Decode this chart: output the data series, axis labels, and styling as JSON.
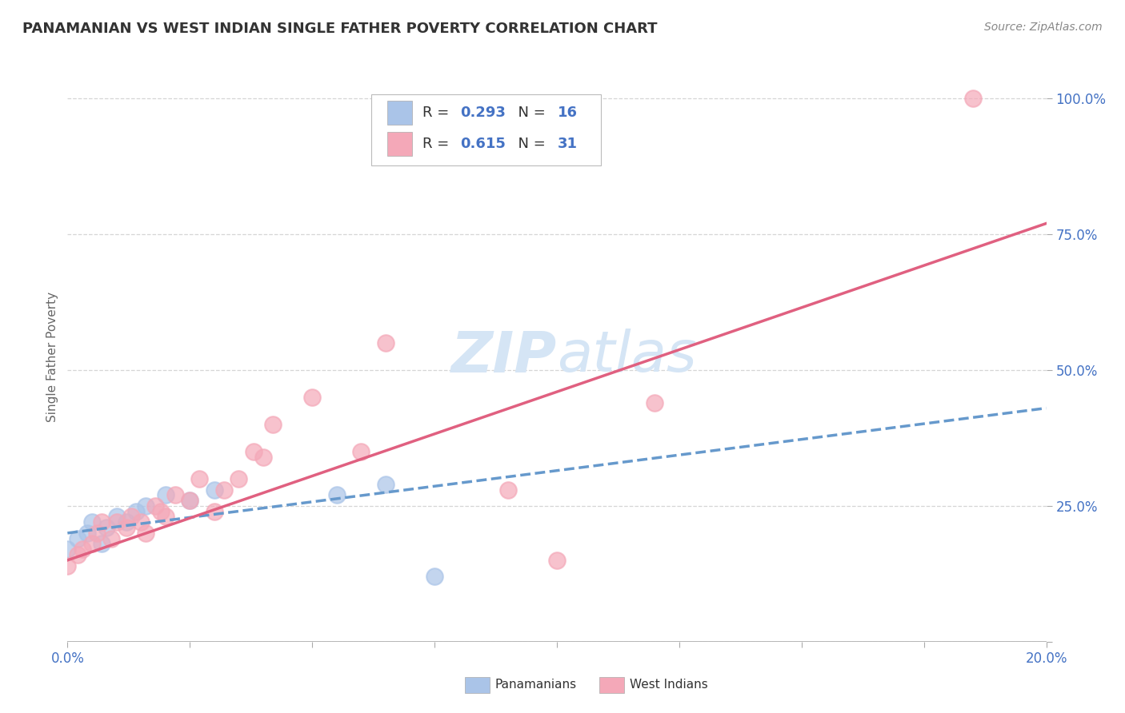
{
  "title": "PANAMANIAN VS WEST INDIAN SINGLE FATHER POVERTY CORRELATION CHART",
  "source": "Source: ZipAtlas.com",
  "ylabel": "Single Father Poverty",
  "xlim": [
    0.0,
    0.2
  ],
  "ylim": [
    0.0,
    1.05
  ],
  "ytick_positions": [
    0.0,
    0.25,
    0.5,
    0.75,
    1.0
  ],
  "ytick_labels": [
    "",
    "25.0%",
    "50.0%",
    "75.0%",
    "100.0%"
  ],
  "pan_color": "#aac4e8",
  "wi_color": "#f4a8b8",
  "pan_line_color": "#6699cc",
  "wi_line_color": "#e06080",
  "pan_R": 0.293,
  "pan_N": 16,
  "wi_R": 0.615,
  "wi_N": 31,
  "pan_scatter_x": [
    0.0,
    0.002,
    0.004,
    0.005,
    0.007,
    0.008,
    0.01,
    0.012,
    0.014,
    0.016,
    0.02,
    0.025,
    0.03,
    0.055,
    0.065,
    0.075
  ],
  "pan_scatter_y": [
    0.17,
    0.19,
    0.2,
    0.22,
    0.18,
    0.21,
    0.23,
    0.22,
    0.24,
    0.25,
    0.27,
    0.26,
    0.28,
    0.27,
    0.29,
    0.12
  ],
  "wi_scatter_x": [
    0.0,
    0.002,
    0.003,
    0.005,
    0.006,
    0.007,
    0.009,
    0.01,
    0.012,
    0.013,
    0.015,
    0.016,
    0.018,
    0.019,
    0.02,
    0.022,
    0.025,
    0.027,
    0.03,
    0.032,
    0.035,
    0.038,
    0.04,
    0.042,
    0.05,
    0.06,
    0.065,
    0.09,
    0.1,
    0.12,
    0.185
  ],
  "wi_scatter_y": [
    0.14,
    0.16,
    0.17,
    0.18,
    0.2,
    0.22,
    0.19,
    0.22,
    0.21,
    0.23,
    0.22,
    0.2,
    0.25,
    0.24,
    0.23,
    0.27,
    0.26,
    0.3,
    0.24,
    0.28,
    0.3,
    0.35,
    0.34,
    0.4,
    0.45,
    0.35,
    0.55,
    0.28,
    0.15,
    0.44,
    1.0
  ],
  "pan_line_x": [
    0.0,
    0.2
  ],
  "pan_line_y": [
    0.2,
    0.43
  ],
  "wi_line_x": [
    0.0,
    0.2
  ],
  "wi_line_y": [
    0.15,
    0.77
  ],
  "background_color": "#ffffff",
  "grid_color": "#cccccc",
  "title_color": "#333333",
  "text_color": "#4472c4",
  "watermark_color": "#d5e5f5",
  "bottom_legend_items": [
    {
      "label": "Panamanians",
      "color": "#aac4e8"
    },
    {
      "label": "West Indians",
      "color": "#f4a8b8"
    }
  ]
}
